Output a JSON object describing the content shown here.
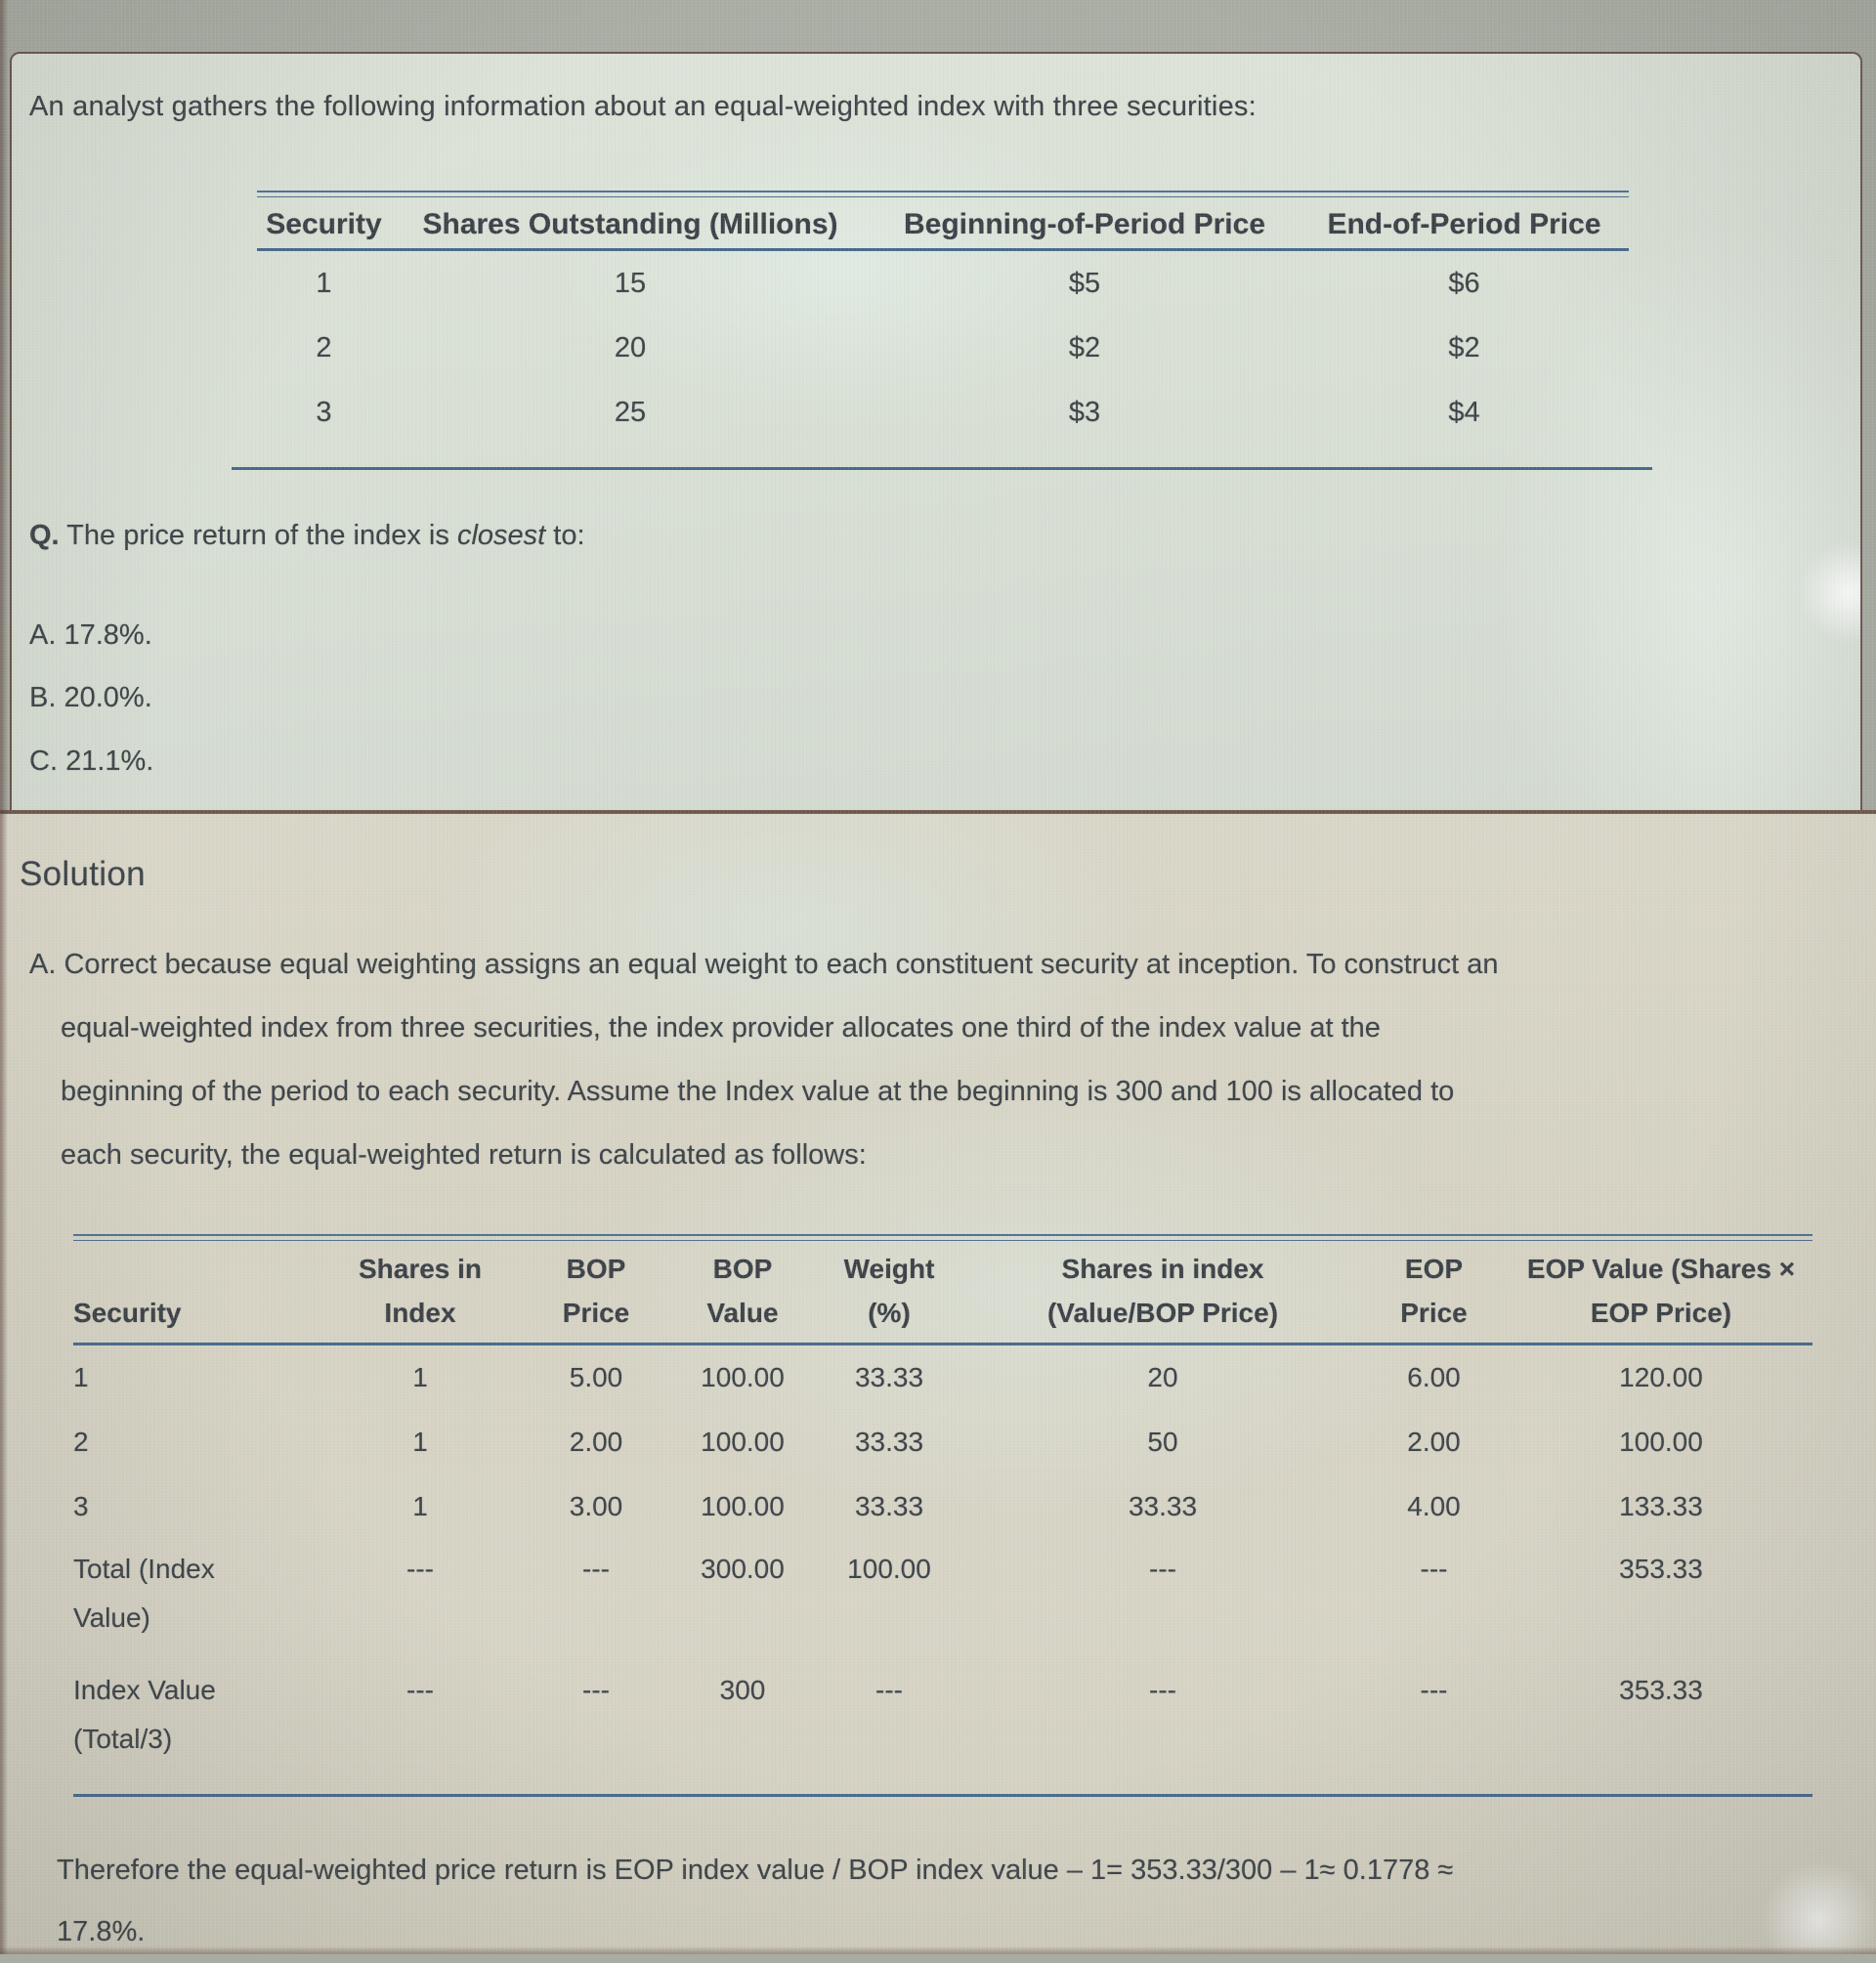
{
  "question": {
    "intro": "An analyst gathers the following information about an equal-weighted index with three securities:",
    "table": {
      "headers": [
        "Security",
        "Shares Outstanding (Millions)",
        "Beginning-of-Period Price",
        "End-of-Period Price"
      ],
      "rows": [
        [
          "1",
          "15",
          "$5",
          "$6"
        ],
        [
          "2",
          "20",
          "$2",
          "$2"
        ],
        [
          "3",
          "25",
          "$3",
          "$4"
        ]
      ]
    },
    "q_label": "Q.",
    "prompt_before": "The price return of the index is",
    "prompt_italic": "closest",
    "prompt_after": "to:",
    "options": [
      {
        "label": "A.",
        "value": "17.8%."
      },
      {
        "label": "B.",
        "value": "20.0%."
      },
      {
        "label": "C.",
        "value": "21.1%."
      }
    ]
  },
  "solution": {
    "heading": "Solution",
    "explanation_lines": [
      "A. Correct because equal weighting assigns an equal weight to each constituent security at inception. To construct an",
      "equal-weighted index from three securities, the index provider allocates one third of the index value at the",
      "beginning of the period to each security. Assume the Index value at the beginning is 300 and 100 is allocated to",
      "each security, the equal-weighted return is calculated as follows:"
    ],
    "table": {
      "headers": [
        {
          "top": "",
          "bottom": "Security"
        },
        {
          "top": "Shares in",
          "bottom": "Index"
        },
        {
          "top": "BOP",
          "bottom": "Price"
        },
        {
          "top": "BOP",
          "bottom": "Value"
        },
        {
          "top": "Weight",
          "bottom": "(%)"
        },
        {
          "top": "Shares in index",
          "bottom": "(Value/BOP Price)"
        },
        {
          "top": "EOP",
          "bottom": "Price"
        },
        {
          "top": "EOP Value (Shares ×",
          "bottom": "EOP Price)"
        }
      ],
      "rows": [
        {
          "label1": "1",
          "label2": "",
          "cells": [
            "1",
            "5.00",
            "100.00",
            "33.33",
            "20",
            "6.00",
            "120.00"
          ]
        },
        {
          "label1": "2",
          "label2": "",
          "cells": [
            "1",
            "2.00",
            "100.00",
            "33.33",
            "50",
            "2.00",
            "100.00"
          ]
        },
        {
          "label1": "3",
          "label2": "",
          "cells": [
            "1",
            "3.00",
            "100.00",
            "33.33",
            "33.33",
            "4.00",
            "133.33"
          ]
        },
        {
          "label1": "Total (Index",
          "label2": "Value)",
          "cells": [
            "---",
            "---",
            "300.00",
            "100.00",
            "---",
            "---",
            "353.33"
          ]
        },
        {
          "label1": "Index Value",
          "label2": "(Total/3)",
          "cells": [
            "---",
            "---",
            "300",
            "---",
            "---",
            "---",
            "353.33"
          ]
        }
      ]
    },
    "conclusion_line1": "Therefore the equal-weighted price return is EOP index value / BOP index value – 1= 353.33/300 – 1≈ 0.1778 ≈",
    "conclusion_line2": "17.8%."
  }
}
